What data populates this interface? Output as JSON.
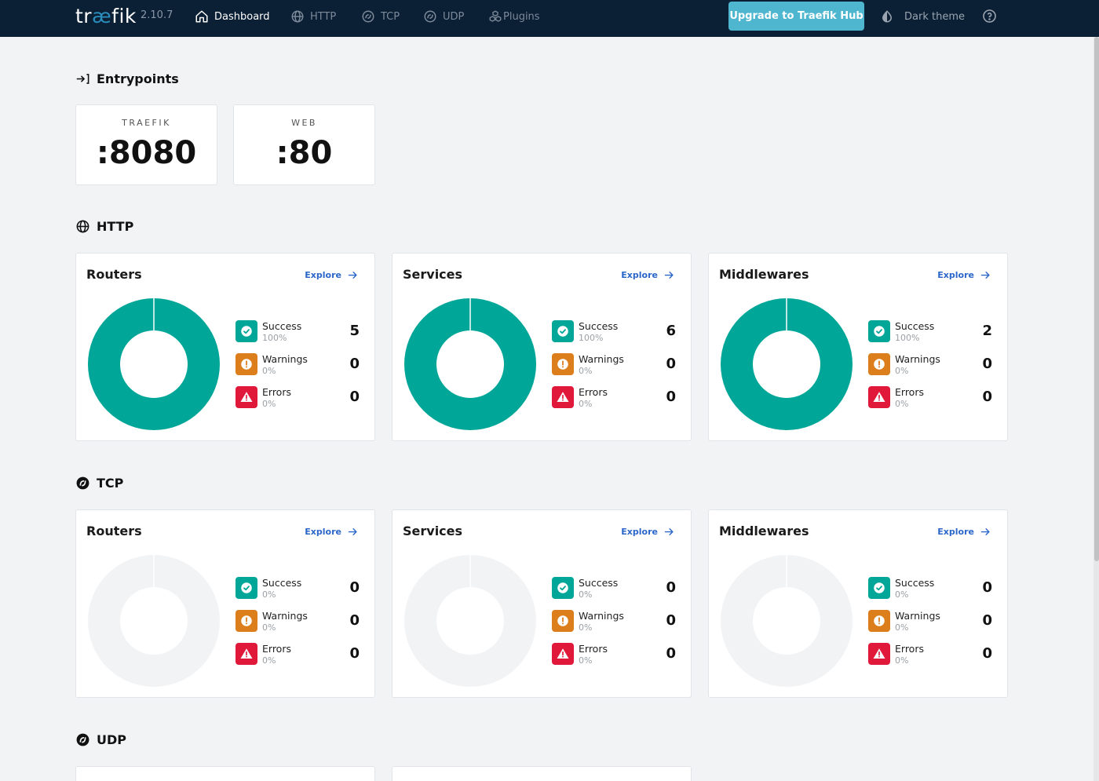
{
  "app": {
    "logo_prefix": "tr",
    "logo_ae": "æ",
    "logo_suffix": "fik",
    "version": "2.10.7"
  },
  "nav": {
    "items": [
      {
        "label": "Dashboard",
        "icon": "home-icon",
        "active": true
      },
      {
        "label": "HTTP",
        "icon": "globe-icon"
      },
      {
        "label": "TCP",
        "icon": "tcp-icon"
      },
      {
        "label": "UDP",
        "icon": "udp-icon"
      },
      {
        "label": "Plugins",
        "icon": "plugins-icon"
      }
    ],
    "hub_button": "Upgrade to Traefik Hub",
    "theme_toggle": "Dark theme"
  },
  "entrypoints": {
    "title": "Entrypoints",
    "items": [
      {
        "name": "TRAEFIK",
        "port": ":8080"
      },
      {
        "name": "WEB",
        "port": ":80"
      }
    ]
  },
  "sections": {
    "http": {
      "title": "HTTP",
      "cards": [
        {
          "title": "Routers",
          "explore": "Explore",
          "success": {
            "label": "Success",
            "pct": "100%",
            "value": "5"
          },
          "warnings": {
            "label": "Warnings",
            "pct": "0%",
            "value": "0"
          },
          "errors": {
            "label": "Errors",
            "pct": "0%",
            "value": "0"
          }
        },
        {
          "title": "Services",
          "explore": "Explore",
          "success": {
            "label": "Success",
            "pct": "100%",
            "value": "6"
          },
          "warnings": {
            "label": "Warnings",
            "pct": "0%",
            "value": "0"
          },
          "errors": {
            "label": "Errors",
            "pct": "0%",
            "value": "0"
          }
        },
        {
          "title": "Middlewares",
          "explore": "Explore",
          "success": {
            "label": "Success",
            "pct": "100%",
            "value": "2"
          },
          "warnings": {
            "label": "Warnings",
            "pct": "0%",
            "value": "0"
          },
          "errors": {
            "label": "Errors",
            "pct": "0%",
            "value": "0"
          }
        }
      ]
    },
    "tcp": {
      "title": "TCP",
      "cards": [
        {
          "title": "Routers",
          "explore": "Explore",
          "success": {
            "label": "Success",
            "pct": "0%",
            "value": "0"
          },
          "warnings": {
            "label": "Warnings",
            "pct": "0%",
            "value": "0"
          },
          "errors": {
            "label": "Errors",
            "pct": "0%",
            "value": "0"
          }
        },
        {
          "title": "Services",
          "explore": "Explore",
          "success": {
            "label": "Success",
            "pct": "0%",
            "value": "0"
          },
          "warnings": {
            "label": "Warnings",
            "pct": "0%",
            "value": "0"
          },
          "errors": {
            "label": "Errors",
            "pct": "0%",
            "value": "0"
          }
        },
        {
          "title": "Middlewares",
          "explore": "Explore",
          "success": {
            "label": "Success",
            "pct": "0%",
            "value": "0"
          },
          "warnings": {
            "label": "Warnings",
            "pct": "0%",
            "value": "0"
          },
          "errors": {
            "label": "Errors",
            "pct": "0%",
            "value": "0"
          }
        }
      ]
    },
    "udp": {
      "title": "UDP"
    }
  },
  "colors": {
    "success": "#00a697",
    "warning": "#dc7e1c",
    "error": "#e0183a",
    "empty": "#f2f3f5",
    "topbar": "#0b1f35",
    "hub_button": "#4fb6cf"
  }
}
